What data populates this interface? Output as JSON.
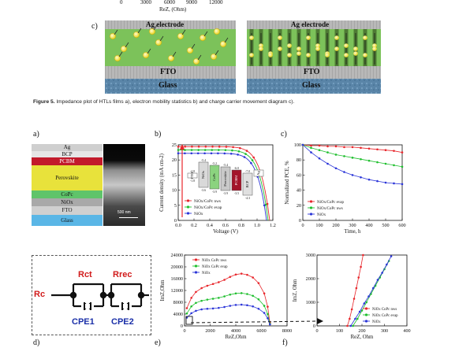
{
  "top_axis": {
    "ticks": [
      "0",
      "3000",
      "6000",
      "9000",
      "12000"
    ],
    "xlabel": "ReZ, (Ohm)"
  },
  "panel_c_top": {
    "label": "c)",
    "left_title": "Ag electrode",
    "right_title": "Ag electrode",
    "fto": "FTO",
    "glass": "Glass"
  },
  "caption": {
    "lead": "Figure 5.",
    "text": "Impedance plot of HTLs films a), electron mobility statistics b) and charge carrier movement diagram c)."
  },
  "panel_labels": {
    "a": "a)",
    "b": "b)",
    "c": "c)",
    "d": "d)",
    "e": "e)",
    "f": "f)"
  },
  "layers": {
    "items": [
      "Ag",
      "BCP",
      "PCBM",
      "Perovskite",
      "CoPc",
      "NiOx",
      "FTO",
      "Glass"
    ],
    "scale": "500 nm"
  },
  "circuit": {
    "rc": "Rc",
    "rct": "Rct",
    "rrec": "Rrec",
    "cpe1": "CPE1",
    "cpe2": "CPE2"
  },
  "chart_data": [
    {
      "id": "b",
      "type": "line",
      "xlabel": "Voltage (V)",
      "ylabel": "Current density (mA cm-2)",
      "xlim": [
        0,
        1.2
      ],
      "ylim": [
        0,
        25
      ],
      "xticks": [
        "0.0",
        "0.2",
        "0.4",
        "0.6",
        "0.8",
        "1.0",
        "1.2"
      ],
      "yticks": [
        "0",
        "5",
        "10",
        "15",
        "20",
        "25"
      ],
      "series": [
        {
          "name": "NiOx/CoPc nws",
          "color": "#e8262b",
          "jsc": 24.4,
          "voc": 1.16
        },
        {
          "name": "NiOx/CoPc evap",
          "color": "#1fbf2e",
          "jsc": 23.3,
          "voc": 1.14
        },
        {
          "name": "NiOx",
          "color": "#2b35d8",
          "jsc": 22.2,
          "voc": 1.12
        }
      ],
      "band_diagram": {
        "labels": [
          "FTO",
          "NiOx",
          "CoPc",
          "Perovskite",
          "PCBM",
          "BCP",
          "Ag"
        ],
        "levels": [
          "-4.8",
          "-1.8",
          "-5.4",
          "-3.6",
          "-5.2",
          "-3.9",
          "-5.4",
          "-3.9",
          "-6.0",
          "-3.5",
          "-7.0",
          "-4.3"
        ]
      }
    },
    {
      "id": "c",
      "type": "line",
      "xlabel": "Time, h",
      "ylabel": "Normalized PCE, %",
      "xlim": [
        0,
        600
      ],
      "ylim": [
        0,
        100
      ],
      "xticks": [
        "0",
        "100",
        "200",
        "300",
        "400",
        "500",
        "600"
      ],
      "yticks": [
        "0",
        "20",
        "40",
        "60",
        "80",
        "100"
      ],
      "series": [
        {
          "name": "NiOx/CoPc evap",
          "color": "#e8262b",
          "x": [
            0,
            50,
            100,
            150,
            200,
            250,
            300,
            350,
            400,
            450,
            500,
            550,
            600
          ],
          "y": [
            100,
            99,
            99,
            98,
            98,
            97,
            97,
            96,
            95,
            94,
            93,
            92,
            90
          ]
        },
        {
          "name": "NiOx/CoPc nws",
          "color": "#1fbf2e",
          "x": [
            0,
            50,
            100,
            150,
            200,
            250,
            300,
            350,
            400,
            450,
            500,
            550,
            600
          ],
          "y": [
            100,
            96,
            93,
            90,
            87,
            85,
            83,
            81,
            79,
            77,
            75,
            73,
            71
          ]
        },
        {
          "name": "NiOx",
          "color": "#2b35d8",
          "x": [
            0,
            50,
            100,
            150,
            200,
            250,
            300,
            350,
            400,
            450,
            500,
            550,
            600
          ],
          "y": [
            100,
            90,
            82,
            75,
            69,
            64,
            60,
            57,
            54,
            52,
            50,
            49,
            48
          ]
        }
      ]
    },
    {
      "id": "e",
      "type": "scatter",
      "xlabel": "ReZ,Ohm",
      "ylabel": "ImZ,Ohm",
      "xlim": [
        0,
        9000
      ],
      "ylim": [
        0,
        24000
      ],
      "xticks": [
        "0",
        "2000",
        "4000",
        "6000",
        "8000"
      ],
      "yticks": [
        "0",
        "4000",
        "8000",
        "12000",
        "16000",
        "20000",
        "24000"
      ],
      "series": [
        {
          "name": "NiOx CoPc nws",
          "color": "#e8262b",
          "x": [
            200,
            600,
            1000,
            1500,
            2000,
            2500,
            3000,
            3500,
            4000,
            4500,
            5000,
            5500,
            6000,
            6500,
            7000,
            7300,
            7500
          ],
          "y": [
            6000,
            9500,
            11500,
            12800,
            13600,
            14200,
            14800,
            15600,
            16600,
            17400,
            17700,
            17300,
            16400,
            14500,
            11000,
            6500,
            1000
          ]
        },
        {
          "name": "NiOx CoPc evap",
          "color": "#1fbf2e",
          "x": [
            200,
            600,
            1000,
            1500,
            2000,
            2500,
            3000,
            3500,
            4000,
            4500,
            5000,
            5500,
            6000,
            6500,
            7000,
            7300,
            7500
          ],
          "y": [
            4200,
            6600,
            7800,
            8500,
            8900,
            9200,
            9500,
            10000,
            10600,
            11000,
            11100,
            10800,
            10200,
            9000,
            6800,
            4000,
            700
          ]
        },
        {
          "name": "NiOx",
          "color": "#2b35d8",
          "x": [
            200,
            600,
            1000,
            1500,
            2000,
            2500,
            3000,
            3500,
            4000,
            4500,
            5000,
            5500,
            6000,
            6500,
            7000,
            7300,
            7500
          ],
          "y": [
            2800,
            4300,
            5100,
            5600,
            5800,
            5900,
            6100,
            6400,
            6800,
            7100,
            7200,
            7000,
            6600,
            5800,
            4400,
            2600,
            500
          ]
        }
      ]
    },
    {
      "id": "f",
      "type": "scatter",
      "xlabel": "ReZ, Ohm",
      "ylabel": "ImZ, Ohm",
      "xlim": [
        0,
        400
      ],
      "ylim": [
        0,
        3000
      ],
      "xticks": [
        "0",
        "100",
        "200",
        "300",
        "400"
      ],
      "yticks": [
        "0",
        "1000",
        "2000",
        "3000"
      ],
      "series": [
        {
          "name": "NiOx CoPc nws",
          "color": "#e8262b",
          "x": [
            135,
            145,
            155,
            165,
            175,
            185,
            195,
            205
          ],
          "y": [
            0,
            300,
            700,
            1150,
            1600,
            2050,
            2500,
            3000
          ]
        },
        {
          "name": "NiOx CoPc evap",
          "color": "#1fbf2e",
          "x": [
            160,
            180,
            200,
            220,
            240,
            260,
            280,
            300,
            320
          ],
          "y": [
            0,
            300,
            650,
            1000,
            1350,
            1700,
            2050,
            2400,
            2750
          ]
        },
        {
          "name": "NiOx",
          "color": "#2b35d8",
          "x": [
            150,
            170,
            190,
            210,
            230,
            250,
            270,
            290,
            310,
            330
          ],
          "y": [
            0,
            300,
            600,
            950,
            1250,
            1600,
            1950,
            2250,
            2600,
            2950
          ]
        }
      ]
    }
  ]
}
